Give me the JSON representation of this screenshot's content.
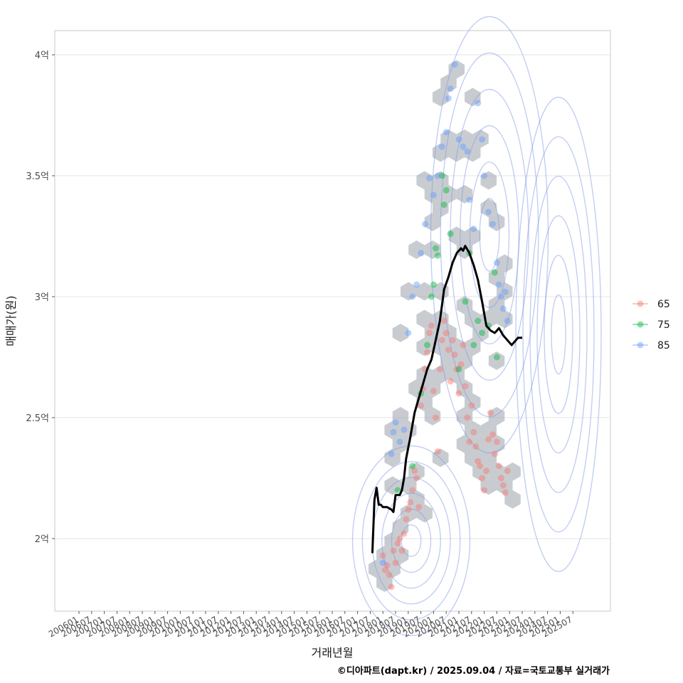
{
  "chart_data": {
    "type": "scatter",
    "xlabel": "거래년월",
    "ylabel": "매매가(원)",
    "caption": "©디아파트(dapt.kr) / 2025.09.04 / 자료=국토교통부 실거래가",
    "ylim": [
      1.7,
      4.1
    ],
    "y_ticks": [
      {
        "value": 2.0,
        "label": "2억"
      },
      {
        "value": 2.5,
        "label": "2.5억"
      },
      {
        "value": 3.0,
        "label": "3억"
      },
      {
        "value": 3.5,
        "label": "3.5억"
      },
      {
        "value": 4.0,
        "label": "4억"
      }
    ],
    "x_ticks": [
      "200601",
      "200607",
      "200701",
      "200707",
      "200801",
      "200807",
      "200901",
      "200907",
      "201001",
      "201007",
      "201101",
      "201107",
      "201201",
      "201207",
      "201301",
      "201307",
      "201401",
      "201407",
      "201501",
      "201507",
      "201601",
      "201607",
      "201701",
      "201707",
      "201801",
      "201807",
      "201901",
      "201907",
      "202001",
      "202007",
      "202101",
      "202107",
      "202201",
      "202207",
      "202301",
      "202307",
      "202401",
      "202407",
      "202501",
      "202507"
    ],
    "legend": {
      "position": "right",
      "entries": [
        {
          "label": "65",
          "color": "#F8766D"
        },
        {
          "label": "75",
          "color": "#00BA38"
        },
        {
          "label": "85",
          "color": "#619CFF"
        }
      ]
    },
    "grid": true,
    "trend_line": {
      "name": "moving average",
      "color": "#000000",
      "points": [
        [
          "201708",
          1.94
        ],
        [
          "201709",
          2.16
        ],
        [
          "201710",
          2.21
        ],
        [
          "201711",
          2.14
        ],
        [
          "201712",
          2.14
        ],
        [
          "201801",
          2.13
        ],
        [
          "201803",
          2.13
        ],
        [
          "201805",
          2.12
        ],
        [
          "201806",
          2.11
        ],
        [
          "201807",
          2.18
        ],
        [
          "201809",
          2.18
        ],
        [
          "201810",
          2.2
        ],
        [
          "201811",
          2.25
        ],
        [
          "201812",
          2.33
        ],
        [
          "201902",
          2.42
        ],
        [
          "201904",
          2.52
        ],
        [
          "201906",
          2.58
        ],
        [
          "201908",
          2.64
        ],
        [
          "201910",
          2.7
        ],
        [
          "201912",
          2.74
        ],
        [
          "202002",
          2.82
        ],
        [
          "202004",
          2.9
        ],
        [
          "202006",
          3.03
        ],
        [
          "202008",
          3.08
        ],
        [
          "202010",
          3.14
        ],
        [
          "202012",
          3.18
        ],
        [
          "202102",
          3.2
        ],
        [
          "202103",
          3.19
        ],
        [
          "202104",
          3.21
        ],
        [
          "202106",
          3.18
        ],
        [
          "202108",
          3.13
        ],
        [
          "202110",
          3.07
        ],
        [
          "202112",
          2.98
        ],
        [
          "202202",
          2.88
        ],
        [
          "202204",
          2.86
        ],
        [
          "202206",
          2.85
        ],
        [
          "202208",
          2.87
        ],
        [
          "202210",
          2.84
        ],
        [
          "202212",
          2.82
        ],
        [
          "202302",
          2.8
        ],
        [
          "202304",
          2.82
        ],
        [
          "202305",
          2.83
        ],
        [
          "202307",
          2.83
        ]
      ]
    },
    "series": [
      {
        "name": "65",
        "points": [
          [
            "201801",
            1.93
          ],
          [
            "201802",
            1.87
          ],
          [
            "201803",
            1.89
          ],
          [
            "201804",
            1.85
          ],
          [
            "201805",
            1.8
          ],
          [
            "201806",
            1.95
          ],
          [
            "201807",
            1.9
          ],
          [
            "201808",
            1.98
          ],
          [
            "201809",
            2.0
          ],
          [
            "201810",
            1.95
          ],
          [
            "201811",
            2.02
          ],
          [
            "201812",
            2.08
          ],
          [
            "201901",
            2.12
          ],
          [
            "201902",
            2.15
          ],
          [
            "201903",
            2.2
          ],
          [
            "201904",
            2.28
          ],
          [
            "201905",
            2.25
          ],
          [
            "201906",
            2.13
          ],
          [
            "201907",
            2.55
          ],
          [
            "201908",
            2.62
          ],
          [
            "201909",
            2.7
          ],
          [
            "201910",
            2.77
          ],
          [
            "201911",
            2.85
          ],
          [
            "201912",
            2.88
          ],
          [
            "202001",
            2.61
          ],
          [
            "202002",
            2.5
          ],
          [
            "202003",
            2.36
          ],
          [
            "202004",
            2.7
          ],
          [
            "202005",
            2.82
          ],
          [
            "202006",
            2.9
          ],
          [
            "202007",
            2.85
          ],
          [
            "202008",
            2.78
          ],
          [
            "202009",
            2.65
          ],
          [
            "202010",
            2.82
          ],
          [
            "202011",
            2.76
          ],
          [
            "202012",
            2.7
          ],
          [
            "202101",
            2.6
          ],
          [
            "202102",
            2.72
          ],
          [
            "202103",
            2.8
          ],
          [
            "202104",
            2.63
          ],
          [
            "202105",
            2.5
          ],
          [
            "202106",
            2.4
          ],
          [
            "202107",
            2.55
          ],
          [
            "202108",
            2.44
          ],
          [
            "202109",
            2.38
          ],
          [
            "202110",
            2.32
          ],
          [
            "202111",
            2.3
          ],
          [
            "202112",
            2.25
          ],
          [
            "202201",
            2.2
          ],
          [
            "202202",
            2.28
          ],
          [
            "202203",
            2.41
          ],
          [
            "202204",
            2.52
          ],
          [
            "202205",
            2.43
          ],
          [
            "202206",
            2.35
          ],
          [
            "202207",
            2.4
          ],
          [
            "202208",
            2.3
          ],
          [
            "202209",
            2.25
          ],
          [
            "202210",
            2.22
          ],
          [
            "202211",
            2.19
          ],
          [
            "202212",
            2.28
          ]
        ]
      },
      {
        "name": "75",
        "points": [
          [
            "201808",
            2.2
          ],
          [
            "201903",
            2.3
          ],
          [
            "201907",
            2.6
          ],
          [
            "201910",
            2.8
          ],
          [
            "201912",
            3.0
          ],
          [
            "202001",
            3.05
          ],
          [
            "202002",
            3.2
          ],
          [
            "202003",
            3.17
          ],
          [
            "202005",
            3.5
          ],
          [
            "202006",
            3.38
          ],
          [
            "202007",
            3.44
          ],
          [
            "202009",
            3.26
          ],
          [
            "202101",
            2.7
          ],
          [
            "202104",
            2.98
          ],
          [
            "202106",
            3.18
          ],
          [
            "202108",
            2.8
          ],
          [
            "202110",
            2.9
          ],
          [
            "202112",
            2.85
          ],
          [
            "202203",
            2.88
          ],
          [
            "202206",
            3.1
          ],
          [
            "202207",
            2.75
          ]
        ]
      },
      {
        "name": "85",
        "points": [
          [
            "201801",
            1.9
          ],
          [
            "201805",
            2.35
          ],
          [
            "201806",
            2.44
          ],
          [
            "201807",
            2.48
          ],
          [
            "201809",
            2.4
          ],
          [
            "201811",
            2.45
          ],
          [
            "201901",
            2.85
          ],
          [
            "201903",
            3.0
          ],
          [
            "201905",
            3.05
          ],
          [
            "201907",
            3.18
          ],
          [
            "201909",
            3.3
          ],
          [
            "201911",
            3.49
          ],
          [
            "202001",
            3.42
          ],
          [
            "202003",
            3.5
          ],
          [
            "202005",
            3.62
          ],
          [
            "202007",
            3.68
          ],
          [
            "202008",
            3.82
          ],
          [
            "202009",
            3.86
          ],
          [
            "202011",
            3.96
          ],
          [
            "202101",
            3.65
          ],
          [
            "202103",
            3.62
          ],
          [
            "202105",
            3.6
          ],
          [
            "202106",
            3.4
          ],
          [
            "202108",
            3.28
          ],
          [
            "202110",
            3.8
          ],
          [
            "202112",
            3.65
          ],
          [
            "202201",
            3.5
          ],
          [
            "202203",
            3.35
          ],
          [
            "202205",
            3.3
          ],
          [
            "202207",
            3.14
          ],
          [
            "202208",
            3.05
          ],
          [
            "202209",
            3.0
          ],
          [
            "202210",
            2.95
          ],
          [
            "202211",
            3.02
          ],
          [
            "202212",
            2.9
          ]
        ]
      }
    ]
  }
}
